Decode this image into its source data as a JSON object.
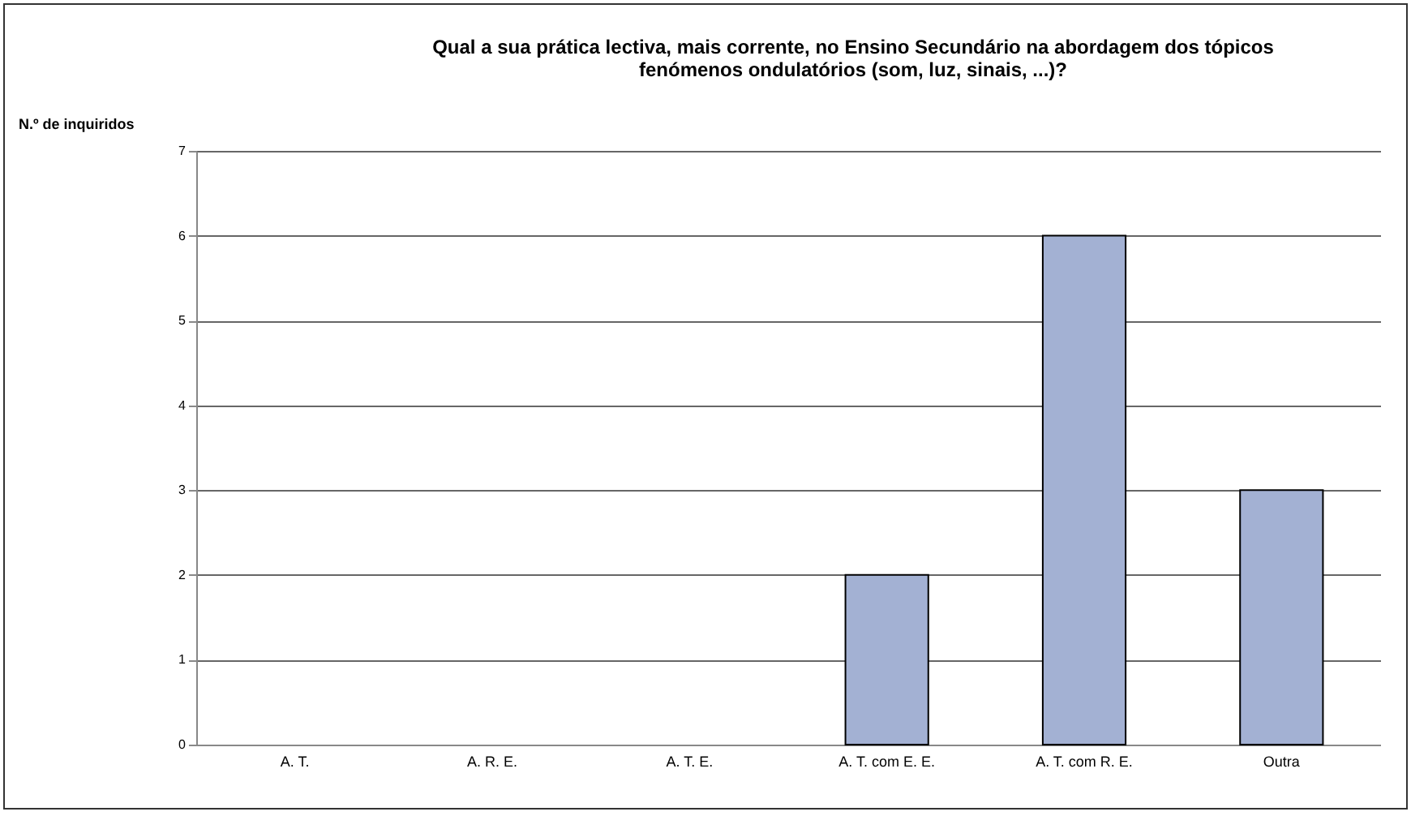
{
  "chart_data": {
    "type": "bar",
    "title": "Qual a sua prática lectiva, mais corrente, no Ensino Secundário na abordagem dos tópicos\nfenómenos ondulatórios (som, luz, sinais, ...)?",
    "ylabel": "N.º de inquiridos",
    "categories": [
      "A. T.",
      "A. R. E.",
      "A. T. E.",
      "A. T. com E. E.",
      "A. T. com R. E.",
      "Outra"
    ],
    "values": [
      0,
      0,
      0,
      2,
      6,
      3
    ],
    "color": "#a3b1d3",
    "ylim": [
      0,
      7
    ],
    "yticks": [
      0,
      1,
      2,
      3,
      4,
      5,
      6,
      7
    ],
    "grid": "y"
  }
}
